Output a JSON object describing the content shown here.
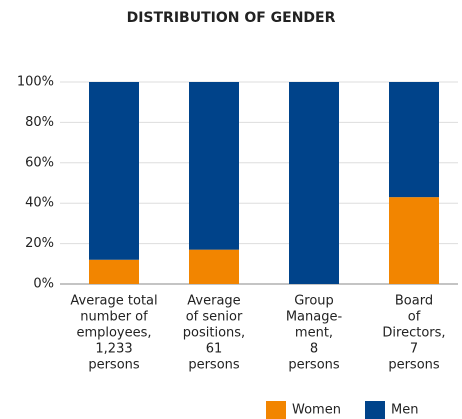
{
  "chart_data": {
    "type": "stacked_bar",
    "title": "DISTRIBUTION OF GENDER",
    "categories": [
      [
        "Average total",
        "number of",
        "employees,",
        "1,233",
        "persons"
      ],
      [
        "Average",
        "of senior",
        "positions,",
        "61",
        "persons"
      ],
      [
        "Group",
        "Manage-",
        "ment,",
        "8",
        "persons"
      ],
      [
        "Board",
        "of",
        "Directors,",
        "7",
        "persons"
      ]
    ],
    "series": [
      {
        "name": "Women",
        "color": "#f28500",
        "values": [
          12,
          17,
          0,
          43
        ]
      },
      {
        "name": "Men",
        "color": "#00438a",
        "values": [
          88,
          83,
          100,
          57
        ]
      }
    ],
    "ylim": [
      0,
      100
    ],
    "yticks": [
      {
        "value": 0,
        "label": "0%"
      },
      {
        "value": 20,
        "label": "20%"
      },
      {
        "value": 40,
        "label": "40%"
      },
      {
        "value": 60,
        "label": "60%"
      },
      {
        "value": 80,
        "label": "80%"
      },
      {
        "value": 100,
        "label": "100%"
      }
    ],
    "grid": true,
    "legend": "bottom"
  }
}
